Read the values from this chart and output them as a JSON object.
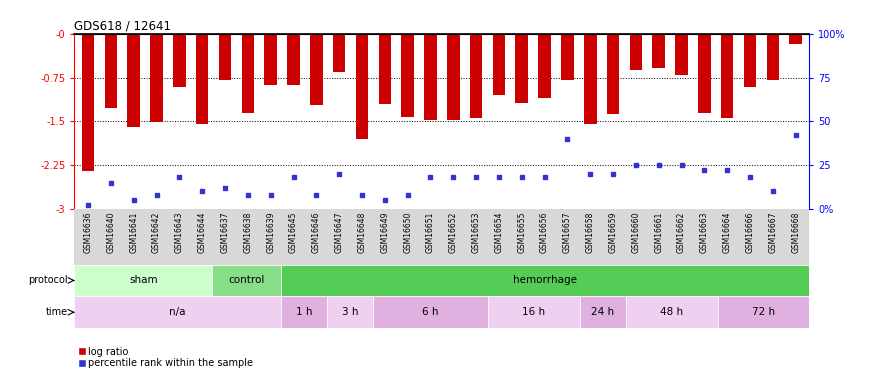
{
  "title": "GDS618 / 12641",
  "samples": [
    "GSM16636",
    "GSM16640",
    "GSM16641",
    "GSM16642",
    "GSM16643",
    "GSM16644",
    "GSM16637",
    "GSM16638",
    "GSM16639",
    "GSM16645",
    "GSM16646",
    "GSM16647",
    "GSM16648",
    "GSM16649",
    "GSM16650",
    "GSM16651",
    "GSM16652",
    "GSM16653",
    "GSM16654",
    "GSM16655",
    "GSM16656",
    "GSM16657",
    "GSM16658",
    "GSM16659",
    "GSM16660",
    "GSM16661",
    "GSM16662",
    "GSM16663",
    "GSM16664",
    "GSM16666",
    "GSM16667",
    "GSM16668"
  ],
  "log_ratio": [
    -2.35,
    -1.28,
    -1.6,
    -1.52,
    -0.92,
    -1.55,
    -0.8,
    -1.35,
    -0.88,
    -0.88,
    -1.22,
    -0.65,
    -1.8,
    -1.2,
    -1.42,
    -1.48,
    -1.48,
    -1.45,
    -1.05,
    -1.18,
    -1.1,
    -0.8,
    -1.55,
    -1.38,
    -0.62,
    -0.58,
    -0.7,
    -1.35,
    -1.45,
    -0.92,
    -0.8,
    -0.18
  ],
  "percentile_rank": [
    2,
    15,
    5,
    8,
    18,
    10,
    12,
    8,
    8,
    18,
    8,
    20,
    8,
    5,
    8,
    18,
    18,
    18,
    18,
    18,
    18,
    40,
    20,
    20,
    25,
    25,
    25,
    22,
    22,
    18,
    10,
    42
  ],
  "bar_color": "#cc0000",
  "blue_color": "#3333cc",
  "ylim_min": -3,
  "ylim_max": 0,
  "yticks": [
    -3,
    -2.25,
    -1.5,
    -0.75,
    0
  ],
  "ytick_labels": [
    "-3",
    "-2.25",
    "-1.5",
    "-0.75",
    "-0"
  ],
  "right_ytick_pcts": [
    0,
    25,
    50,
    75,
    100
  ],
  "right_ytick_labels": [
    "0%",
    "25",
    "50",
    "75",
    "100%"
  ],
  "protocol_groups": [
    {
      "label": "sham",
      "start": 0,
      "end": 6,
      "color": "#ccffcc"
    },
    {
      "label": "control",
      "start": 6,
      "end": 9,
      "color": "#88dd88"
    },
    {
      "label": "hemorrhage",
      "start": 9,
      "end": 32,
      "color": "#55cc55"
    }
  ],
  "time_groups": [
    {
      "label": "n/a",
      "start": 0,
      "end": 9,
      "color": "#f0d0f0"
    },
    {
      "label": "1 h",
      "start": 9,
      "end": 11,
      "color": "#e0b0e0"
    },
    {
      "label": "3 h",
      "start": 11,
      "end": 13,
      "color": "#f0d0f0"
    },
    {
      "label": "6 h",
      "start": 13,
      "end": 18,
      "color": "#e0b0e0"
    },
    {
      "label": "16 h",
      "start": 18,
      "end": 22,
      "color": "#f0d0f0"
    },
    {
      "label": "24 h",
      "start": 22,
      "end": 24,
      "color": "#e0b0e0"
    },
    {
      "label": "48 h",
      "start": 24,
      "end": 28,
      "color": "#f0d0f0"
    },
    {
      "label": "72 h",
      "start": 28,
      "end": 32,
      "color": "#e0b0e0"
    }
  ],
  "bg_color": "#ffffff",
  "bar_width": 0.55,
  "grid_color": "#cccccc",
  "tick_label_bg": "#d8d8d8"
}
